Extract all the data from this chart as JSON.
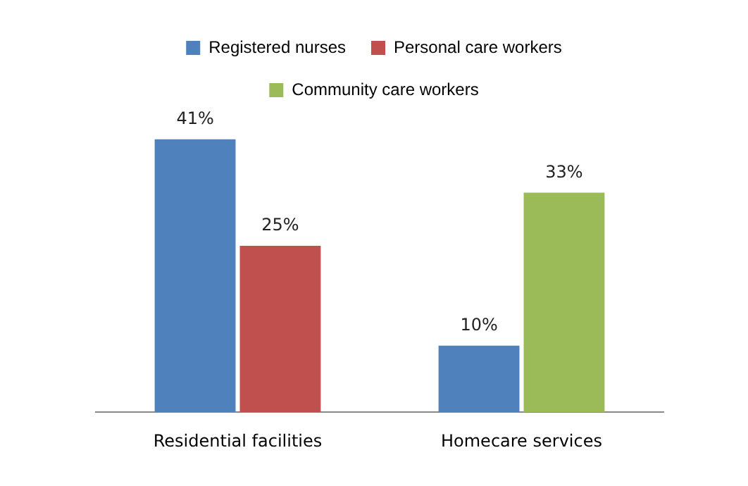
{
  "chart_data": {
    "type": "bar",
    "categories": [
      "Residential facilities",
      "Homecare services"
    ],
    "series": [
      {
        "name": "Registered nurses",
        "color": "#4f81bd",
        "values": [
          41,
          10
        ],
        "value_labels": [
          "41%",
          "10%"
        ]
      },
      {
        "name": "Personal care workers",
        "color": "#c0504d",
        "values": [
          25,
          null
        ],
        "value_labels": [
          "25%",
          null
        ]
      },
      {
        "name": "Community care workers",
        "color": "#9bbb59",
        "values": [
          null,
          33
        ],
        "value_labels": [
          null,
          "33%"
        ]
      }
    ],
    "legend": "top",
    "grid": false,
    "tick_labels": "x"
  }
}
